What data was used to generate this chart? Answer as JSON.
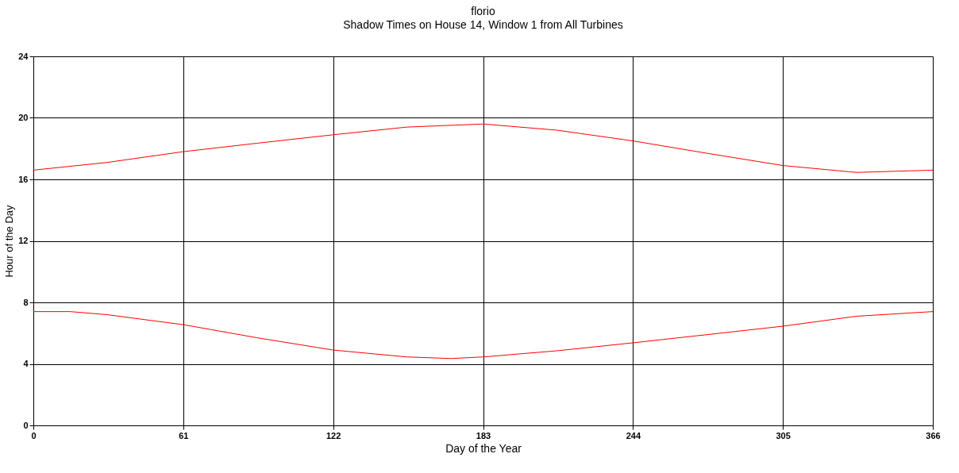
{
  "chart_data": {
    "type": "line",
    "title": "florio",
    "subtitle": "Shadow Times on House 14, Window 1 from All Turbines",
    "xlabel": "Day of the Year",
    "ylabel": "Hour of the Day",
    "xlim": [
      0,
      366
    ],
    "xticks": [
      0,
      61,
      122,
      183,
      244,
      305,
      366
    ],
    "ylim": [
      0,
      24
    ],
    "yticks": [
      0,
      4,
      8,
      12,
      16,
      20,
      24
    ],
    "grid": true,
    "marker": "none",
    "line_style": "solid",
    "series": [
      {
        "color": "#ff0000",
        "x": [
          0,
          30,
          61,
          91,
          122,
          152,
          183,
          213,
          244,
          274,
          305,
          335,
          366
        ],
        "values": [
          16.6,
          17.1,
          17.8,
          18.35,
          18.9,
          19.4,
          19.6,
          19.2,
          18.5,
          17.7,
          16.9,
          16.45,
          16.6
        ]
      },
      {
        "color": "#ff0000",
        "x": [
          0,
          15,
          30,
          61,
          91,
          122,
          152,
          170,
          183,
          213,
          244,
          274,
          305,
          335,
          366
        ],
        "values": [
          7.4,
          7.4,
          7.2,
          6.55,
          5.7,
          4.9,
          4.45,
          4.35,
          4.45,
          4.85,
          5.37,
          5.9,
          6.45,
          7.1,
          7.4
        ]
      }
    ]
  }
}
